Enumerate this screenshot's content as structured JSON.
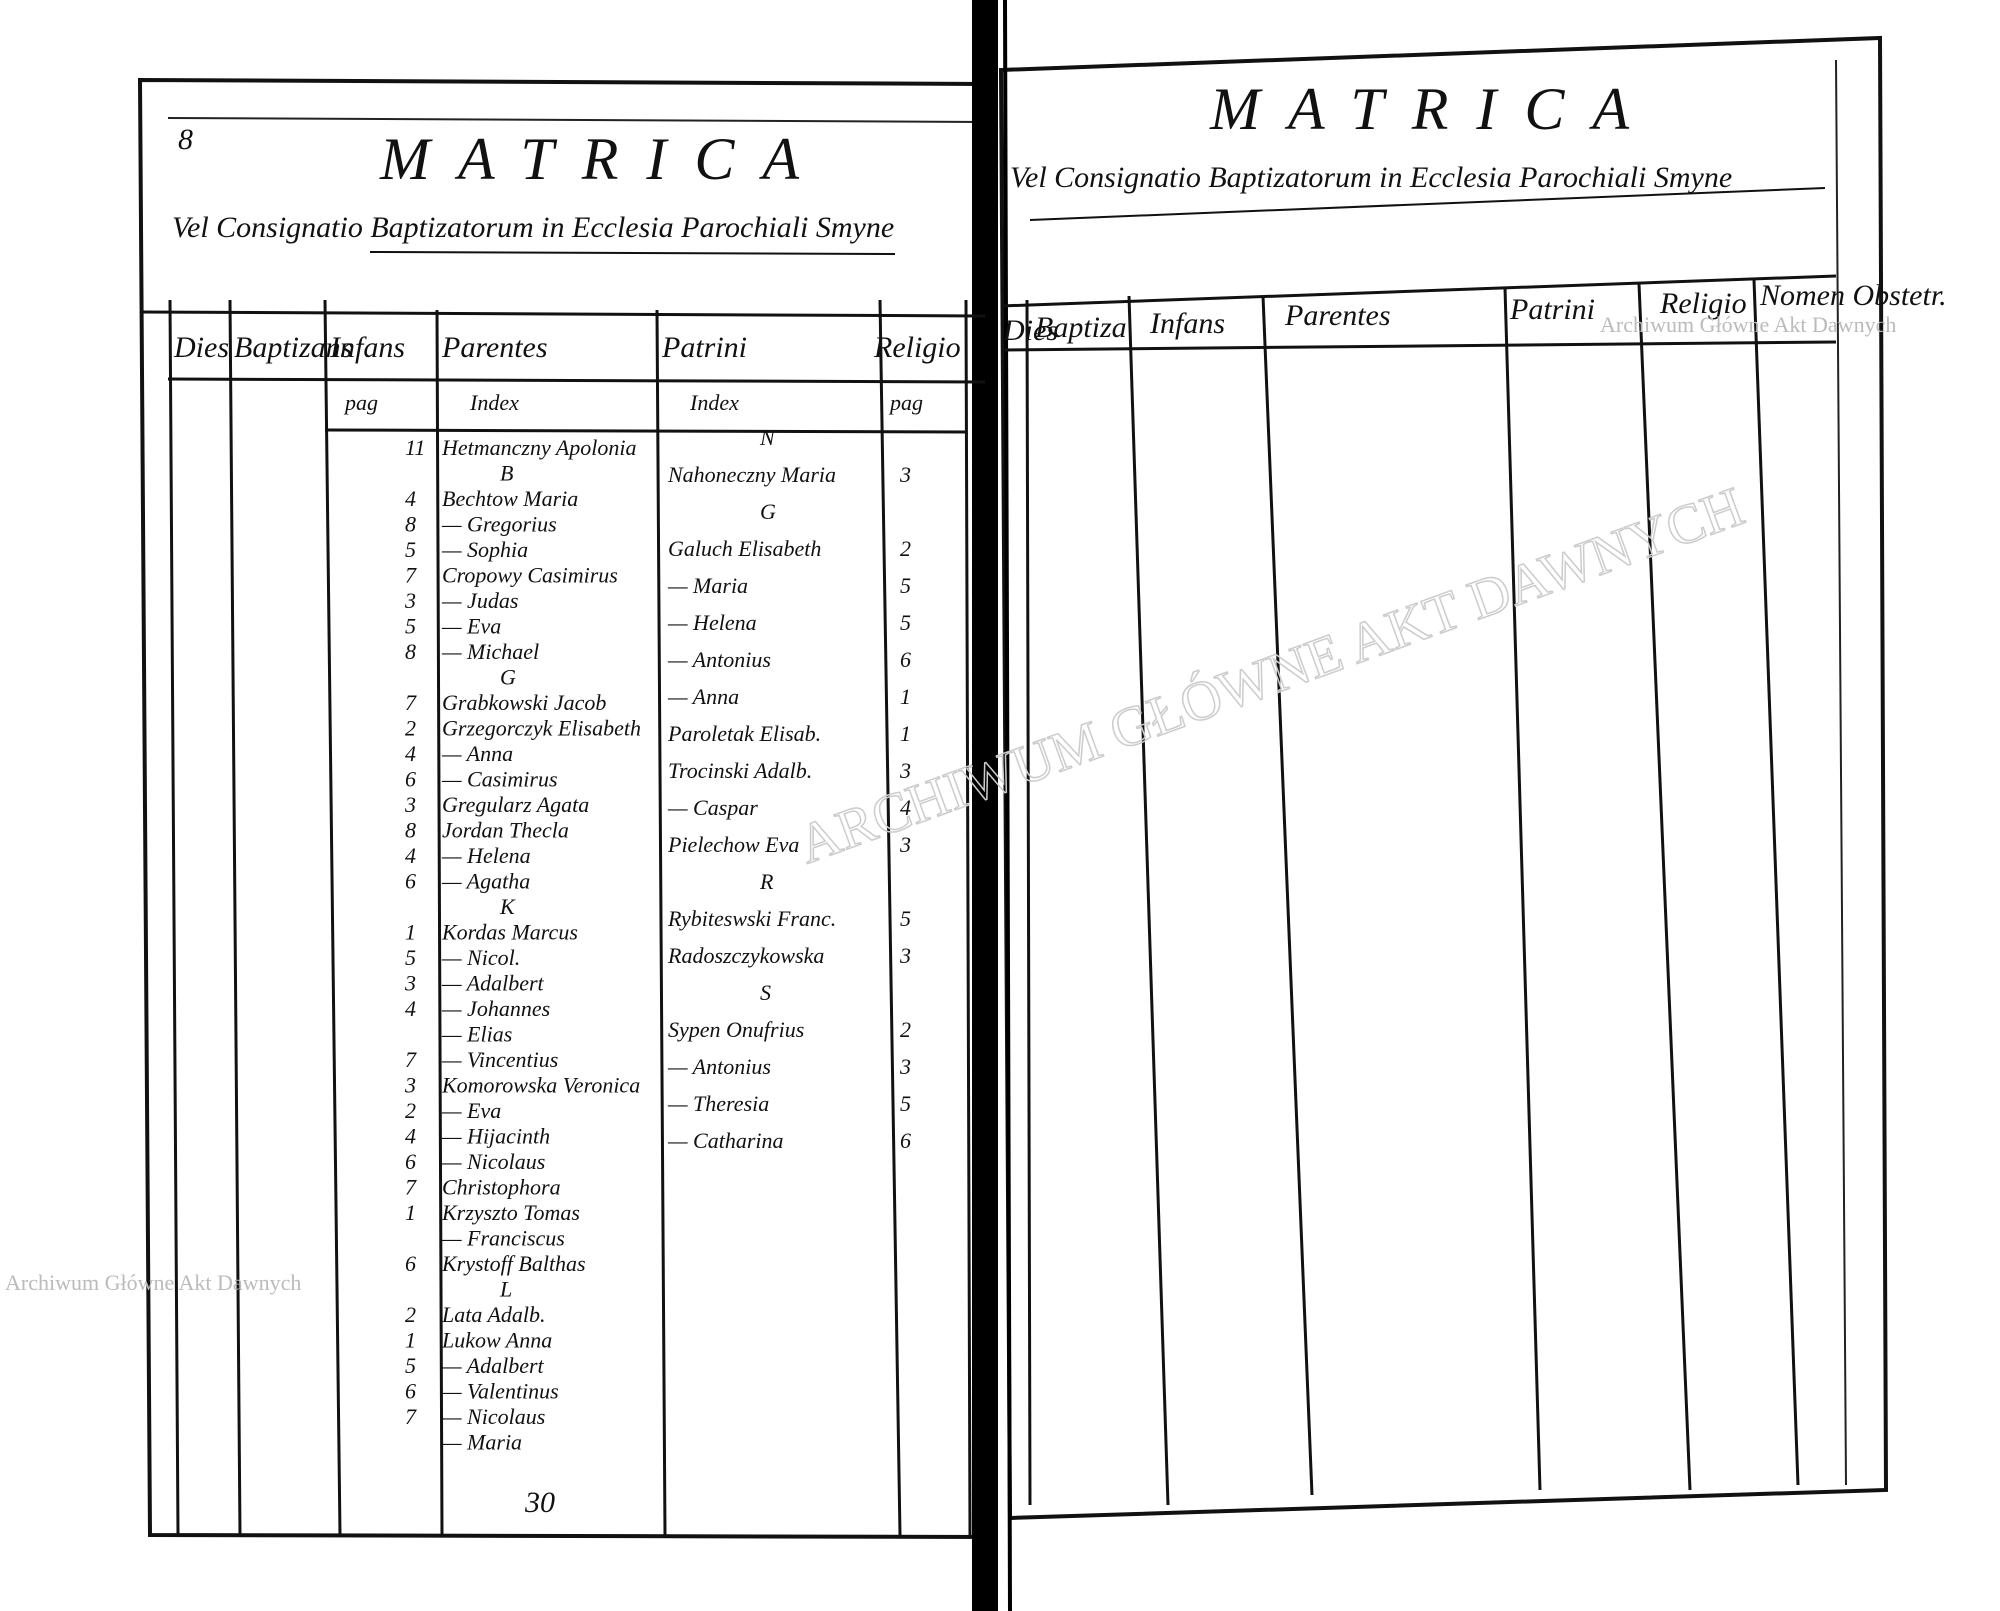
{
  "left_page": {
    "page_number": "8",
    "title": "MATRICA",
    "subtitle": "Vel Consignatio Baptizatorum in Ecclesia Parochiali Smyne",
    "headers": [
      "Dies",
      "Baptizans",
      "Infans",
      "Parentes",
      "Patrini",
      "Religio"
    ],
    "index_heading": {
      "pag_left": "pag",
      "parentes": "Index",
      "patrini": "Index",
      "pag_right": "pag"
    },
    "parentes_entries": [
      {
        "num": "11",
        "name": "Hetmanczny Apolonia"
      },
      {
        "name": "B"
      },
      {
        "num": "4",
        "name": "Bechtow Maria"
      },
      {
        "num": "8",
        "name": "— Gregorius"
      },
      {
        "num": "5",
        "name": "— Sophia"
      },
      {
        "num": "7",
        "name": "Cropowy Casimirus"
      },
      {
        "num": "3",
        "name": "— Judas"
      },
      {
        "num": "5",
        "name": "— Eva"
      },
      {
        "num": "8",
        "name": "— Michael"
      },
      {
        "name": "G"
      },
      {
        "num": "7",
        "name": "Grabkowski Jacob"
      },
      {
        "num": "2",
        "name": "Grzegorczyk Elisabeth"
      },
      {
        "num": "4",
        "name": "— Anna"
      },
      {
        "num": "6",
        "name": "— Casimirus"
      },
      {
        "num": "3",
        "name": "Gregularz Agata"
      },
      {
        "num": "8",
        "name": "Jordan Thecla"
      },
      {
        "num": "4",
        "name": "— Helena"
      },
      {
        "num": "6",
        "name": "— Agatha"
      },
      {
        "name": "K"
      },
      {
        "num": "1",
        "name": "Kordas Marcus"
      },
      {
        "num": "5",
        "name": "— Nicol."
      },
      {
        "num": "3",
        "name": "— Adalbert"
      },
      {
        "num": "4",
        "name": "— Johannes"
      },
      {
        "name": "— Elias"
      },
      {
        "num": "7",
        "name": "— Vincentius"
      },
      {
        "num": "3",
        "name": "Komorowska Veronica"
      },
      {
        "num": "2",
        "name": "— Eva"
      },
      {
        "num": "4",
        "name": "— Hijacinth"
      },
      {
        "num": "6",
        "name": "— Nicolaus"
      },
      {
        "num": "7",
        "name": "Christophora"
      },
      {
        "num": "1",
        "name": "Krzyszto Tomas"
      },
      {
        "name": "— Franciscus"
      },
      {
        "num": "6",
        "name": "Krystoff Balthas"
      },
      {
        "name": "L"
      },
      {
        "num": "2",
        "name": "Lata Adalb."
      },
      {
        "num": "1",
        "name": "Lukow Anna"
      },
      {
        "num": "5",
        "name": "— Adalbert"
      },
      {
        "num": "6",
        "name": "— Valentinus"
      },
      {
        "num": "7",
        "name": "— Nicolaus"
      },
      {
        "name": "— Maria"
      }
    ],
    "patrini_entries": [
      {
        "name": "N"
      },
      {
        "name": "Nahoneczny Maria",
        "num": "3"
      },
      {
        "name": "G"
      },
      {
        "name": "Galuch Elisabeth",
        "num": "2"
      },
      {
        "name": "— Maria",
        "num": "5"
      },
      {
        "name": "— Helena",
        "num": "5"
      },
      {
        "name": "— Antonius",
        "num": "6"
      },
      {
        "name": "— Anna",
        "num": "1"
      },
      {
        "name": "Paroletak Elisab.",
        "num": "1"
      },
      {
        "name": "Trocinski Adalb.",
        "num": "3"
      },
      {
        "name": "— Caspar",
        "num": "4"
      },
      {
        "name": "Pielechow Eva",
        "num": "3"
      },
      {
        "name": "R"
      },
      {
        "name": "Rybiteswski Franc.",
        "num": "5"
      },
      {
        "name": "Radoszczykowska",
        "num": "3"
      },
      {
        "name": "S"
      },
      {
        "name": "Sypen Onufrius",
        "num": "2"
      },
      {
        "name": "— Antonius",
        "num": "3"
      },
      {
        "name": "— Theresia",
        "num": "5"
      },
      {
        "name": "— Catharina",
        "num": "6"
      }
    ],
    "footer_number": "30"
  },
  "right_page": {
    "title": "MATRICA",
    "subtitle": "Vel Consignatio Baptizatorum in Ecclesia Parochiali Smyne",
    "headers": [
      "Dies",
      "Baptiza",
      "Infans",
      "Parentes",
      "Patrini",
      "Religio",
      "Nomen Obstetr."
    ]
  },
  "watermarks": {
    "left": "Archiwum Główne Akt Dawnych",
    "right": "Archiwum Główne Akt Dawnych",
    "stamp": "ARCHIWUM GŁÓWNE AKT DAWNYCH"
  }
}
